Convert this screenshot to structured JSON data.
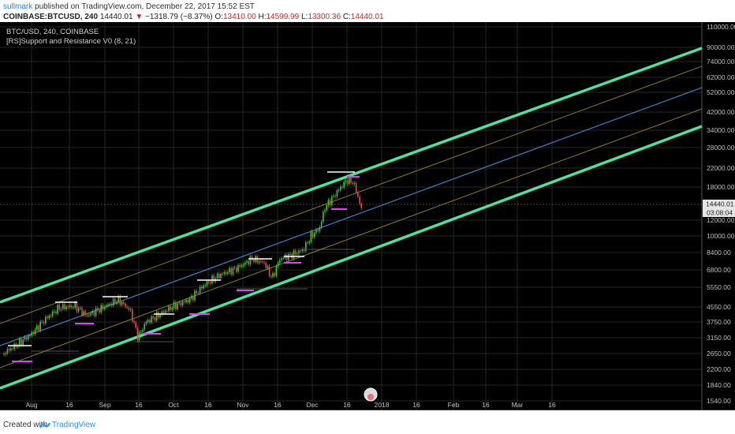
{
  "header": {
    "author": "sullmark",
    "published_text": "published on TradingView.com, December 22, 2017 15:52 EST",
    "symbol": "COINBASE:BTCUSD, 240",
    "last": "14440.01",
    "change": "−1318.79 (−8.37%)",
    "o_label": "O:",
    "o_value": "13410.00",
    "h_label": "H:",
    "h_value": "14599.99",
    "l_label": "L:",
    "l_value": "13300.36",
    "c_label": "C:",
    "c_value": "14440.01"
  },
  "legend": {
    "line1": "BTC/USD, 240, COINBASE",
    "line2": "[RS]Support and Resistance V0 (8, 21)"
  },
  "price_badge": "14440.01",
  "countdown_badge": "03:08:04",
  "footer": {
    "created_with": "Created with",
    "brand": "TradingView"
  },
  "colors": {
    "background": "#000000",
    "channel": "#4be3a0",
    "midline": "#3f7fc0",
    "quarter_lines": "#8a7a2a",
    "candle_up": "#2ecc40",
    "candle_down": "#e24b4b",
    "resistance_marks": "#ffffff",
    "support_marks": "#e040fb"
  },
  "chart_data": {
    "type": "line",
    "scale": "log",
    "price_axis": [
      "110000.00",
      "90000.00",
      "74000.00",
      "62000.00",
      "52000.00",
      "42000.00",
      "34000.00",
      "28000.00",
      "22000.00",
      "18000.00",
      "14440.01",
      "12000.00",
      "10000.00",
      "8400.00",
      "6800.00",
      "5550.00",
      "4550.00",
      "3750.00",
      "3150.00",
      "2650.00",
      "2200.00",
      "1840.00",
      "1540.00"
    ],
    "time_axis": [
      "Aug",
      "16",
      "Sep",
      "16",
      "Oct",
      "16",
      "Nov",
      "16",
      "Dec",
      "16",
      "2018",
      "16",
      "Feb",
      "16",
      "Mar",
      "16"
    ],
    "series": [
      {
        "x": [
          "Jul 25",
          "Aug 8",
          "Aug 22",
          "Sep 2",
          "Sep 15",
          "Sep 30",
          "Oct 15",
          "Oct 30",
          "Nov 12",
          "Nov 28",
          "Dec 8",
          "Dec 17",
          "Dec 22"
        ],
        "values": [
          2600,
          3300,
          4200,
          4700,
          3300,
          4300,
          5600,
          6300,
          5900,
          10000,
          14500,
          19500,
          14440
        ]
      }
    ]
  }
}
